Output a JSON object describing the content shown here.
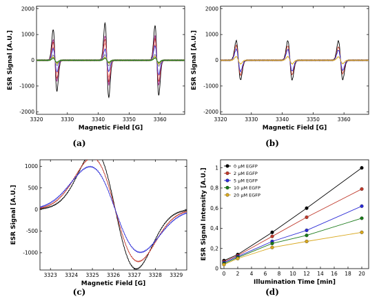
{
  "colors": {
    "black": "#000000",
    "red": "#c0392b",
    "blue": "#2b2bd6",
    "green": "#1a7a1a",
    "gold": "#d9a81e",
    "magenta": "#b0309a",
    "pink": "#f08a8a",
    "gray": "#7a7a7a"
  },
  "chart_data": [
    {
      "id": "a",
      "type": "line",
      "panel_label": "(a)",
      "xlabel": "Magnetic Field [G]",
      "ylabel": "ESR Signal [A.U.]",
      "xlim": [
        3320,
        3368
      ],
      "ylim": [
        -2100,
        2100
      ],
      "xticks": [
        3320,
        3330,
        3340,
        3350,
        3360
      ],
      "yticks": [
        -2000,
        -1000,
        0,
        1000,
        2000
      ],
      "peaks": [
        {
          "center": 3326.0,
          "width": 0.6
        },
        {
          "center": 3342.8,
          "width": 0.6
        },
        {
          "center": 3359.0,
          "width": 0.6
        }
      ],
      "series": [
        {
          "color_key": "black",
          "amplitudes": [
            1200,
            1450,
            1350
          ]
        },
        {
          "color_key": "magenta",
          "amplitudes": [
            800,
            950,
            950
          ]
        },
        {
          "color_key": "red",
          "amplitudes": [
            700,
            820,
            820
          ]
        },
        {
          "color_key": "pink",
          "amplitudes": [
            500,
            650,
            600
          ]
        },
        {
          "color_key": "blue",
          "amplitudes": [
            450,
            430,
            560
          ]
        },
        {
          "color_key": "gray",
          "amplitudes": [
            200,
            210,
            220
          ]
        },
        {
          "color_key": "gold",
          "amplitudes": [
            120,
            110,
            140
          ]
        },
        {
          "color_key": "green",
          "amplitudes": [
            80,
            80,
            90
          ]
        }
      ]
    },
    {
      "id": "b",
      "type": "line",
      "panel_label": "(b)",
      "xlabel": "Magnetic Field [G]",
      "ylabel": "ESR Signal [A.U.]",
      "xlim": [
        3320,
        3368
      ],
      "ylim": [
        -2100,
        2100
      ],
      "xticks": [
        3320,
        3330,
        3340,
        3350,
        3360
      ],
      "yticks": [
        -2000,
        -1000,
        0,
        1000,
        2000
      ],
      "peaks": [
        {
          "center": 3325.8,
          "width": 0.7
        },
        {
          "center": 3342.5,
          "width": 0.7
        },
        {
          "center": 3358.9,
          "width": 0.7
        }
      ],
      "series": [
        {
          "color_key": "black",
          "amplitudes": [
            760,
            760,
            750
          ]
        },
        {
          "color_key": "red",
          "amplitudes": [
            580,
            560,
            520
          ]
        },
        {
          "color_key": "blue",
          "amplitudes": [
            430,
            420,
            390
          ]
        },
        {
          "color_key": "gold",
          "amplitudes": [
            140,
            140,
            130
          ]
        }
      ]
    },
    {
      "id": "c",
      "type": "line",
      "panel_label": "(c)",
      "xlabel": "Magnetic Field [G]",
      "ylabel": "ESR Signal [A.U.]",
      "xlim": [
        3322.5,
        3329.5
      ],
      "ylim": [
        -1400,
        1150
      ],
      "xticks": [
        3323,
        3324,
        3325,
        3326,
        3327,
        3328,
        3329
      ],
      "yticks": [
        -1000,
        -500,
        0,
        500,
        1000
      ],
      "series": [
        {
          "color_key": "black",
          "center": 3326.1,
          "width": 1.0,
          "amplitude": 1370
        },
        {
          "color_key": "red",
          "center": 3326.1,
          "width": 1.1,
          "amplitude": 1200
        },
        {
          "color_key": "blue",
          "center": 3326.1,
          "width": 1.2,
          "amplitude": 990
        }
      ]
    },
    {
      "id": "d",
      "type": "scatter",
      "panel_label": "(d)",
      "xlabel": "Illumination Time [min]",
      "ylabel": "ESR Signal Intensity [A.U.]",
      "xlim": [
        -0.5,
        21
      ],
      "ylim": [
        0,
        1.08
      ],
      "xticks": [
        0,
        2,
        4,
        6,
        8,
        10,
        12,
        14,
        16,
        18,
        20
      ],
      "yticks": [
        0.0,
        0.2,
        0.4,
        0.6,
        0.8,
        1.0
      ],
      "ytick_labels": [
        "0",
        "0,2",
        "0,4",
        "0,6",
        "0,8",
        "1"
      ],
      "x": [
        0,
        2,
        7,
        12,
        20
      ],
      "series": [
        {
          "name": "0  μM EGFP",
          "color_key": "black",
          "values": [
            0.08,
            0.14,
            0.36,
            0.6,
            1.0
          ]
        },
        {
          "name": "2  μM EGFP",
          "color_key": "red",
          "values": [
            0.07,
            0.13,
            0.32,
            0.51,
            0.79
          ]
        },
        {
          "name": "5  μM EGFP",
          "color_key": "blue",
          "values": [
            0.06,
            0.12,
            0.27,
            0.38,
            0.62
          ]
        },
        {
          "name": "10  μM EGFP",
          "color_key": "green",
          "values": [
            0.05,
            0.11,
            0.25,
            0.33,
            0.5
          ]
        },
        {
          "name": "20  μM EGFP",
          "color_key": "gold",
          "values": [
            0.04,
            0.1,
            0.21,
            0.27,
            0.36
          ]
        }
      ],
      "legend_position": "top-left"
    }
  ]
}
